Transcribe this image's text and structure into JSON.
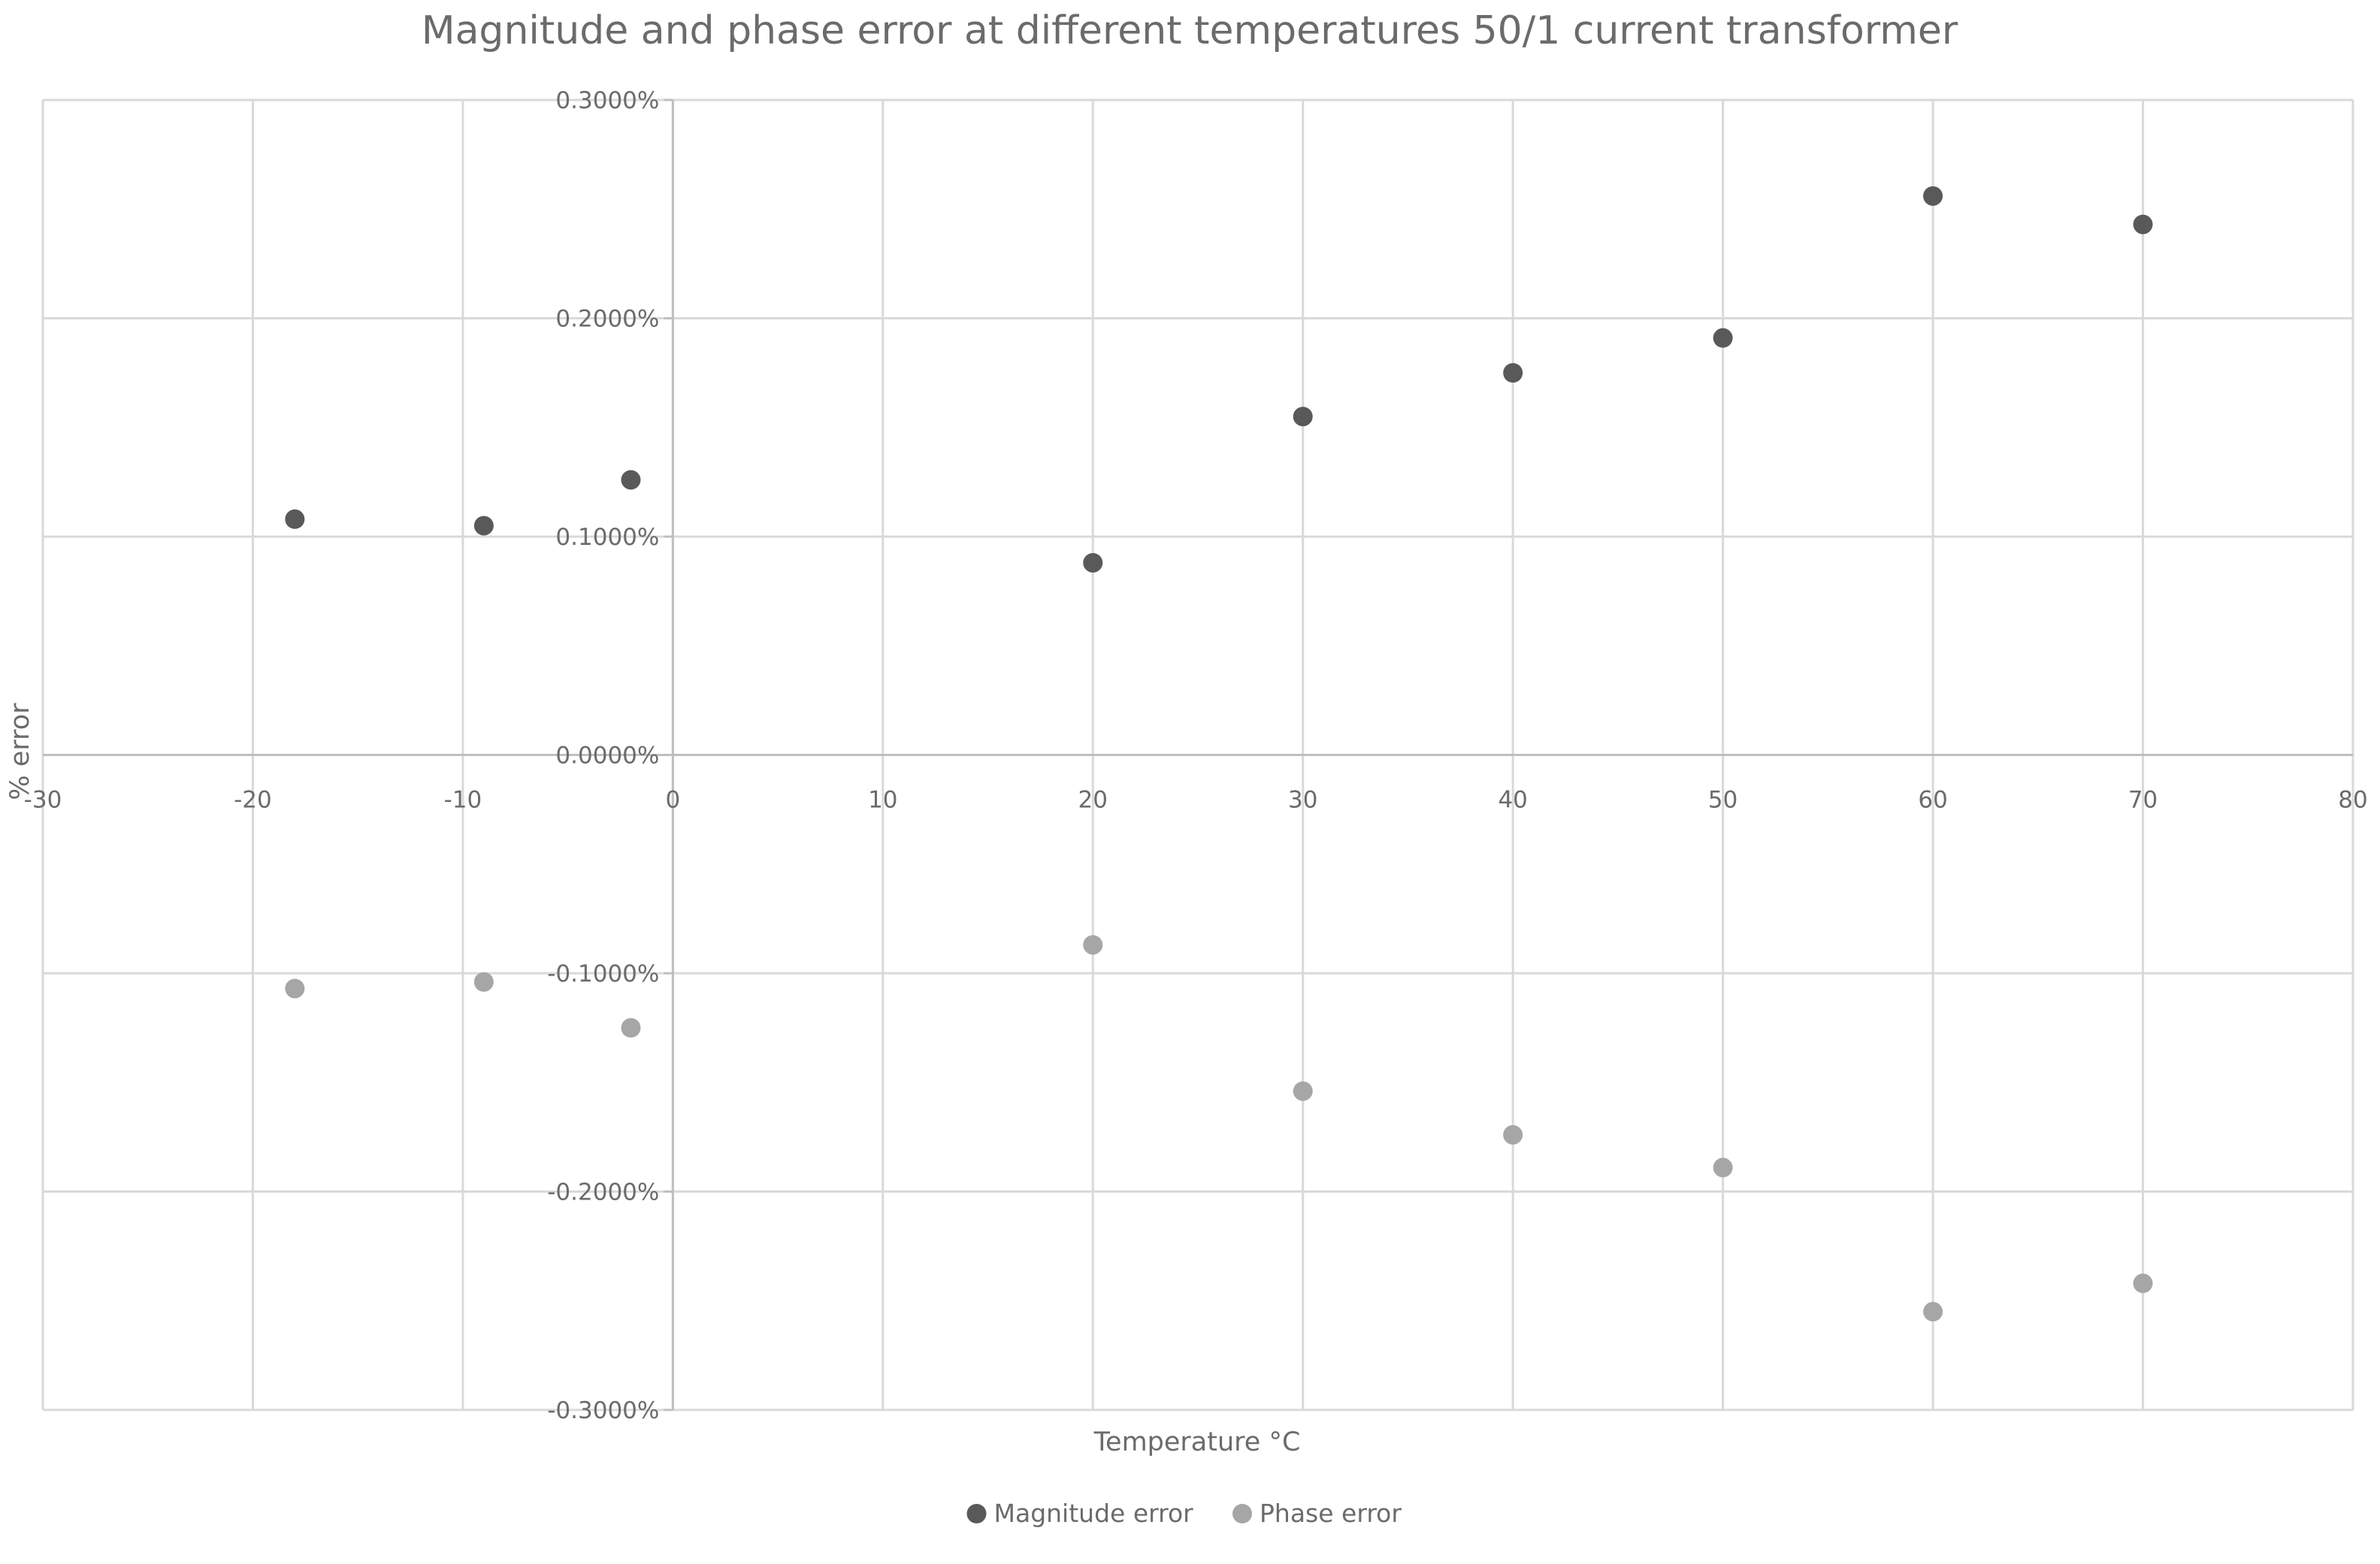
{
  "chart_data": {
    "type": "scatter",
    "title": "Magnitude and phase error at different temperatures 50/1 current transformer",
    "xlabel": "Temperature °C",
    "ylabel": "% error",
    "xlim": [
      -30,
      80
    ],
    "ylim": [
      -0.003,
      0.003
    ],
    "x_ticks": [
      -30,
      -20,
      -10,
      0,
      10,
      20,
      30,
      40,
      50,
      60,
      70,
      80
    ],
    "x_tick_labels": [
      "-30",
      "-20",
      "-10",
      "0",
      "10",
      "20",
      "30",
      "40",
      "50",
      "60",
      "70",
      "80"
    ],
    "y_ticks": [
      0.003,
      0.002,
      0.001,
      0,
      -0.001,
      -0.002,
      -0.003
    ],
    "y_tick_labels": [
      "0.3000%",
      "0.2000%",
      "0.1000%",
      "0.0000%",
      "-0.1000%",
      "-0.2000%",
      "-0.3000%"
    ],
    "grid": true,
    "legend_position": "bottom",
    "series": [
      {
        "name": "Magnitude error",
        "color": "#595959",
        "points": [
          {
            "x": -18,
            "y": 0.00108
          },
          {
            "x": -9,
            "y": 0.00105
          },
          {
            "x": -2,
            "y": 0.00126
          },
          {
            "x": 20,
            "y": 0.00088
          },
          {
            "x": 30,
            "y": 0.00155
          },
          {
            "x": 40,
            "y": 0.00175
          },
          {
            "x": 50,
            "y": 0.00191
          },
          {
            "x": 60,
            "y": 0.00256
          },
          {
            "x": 70,
            "y": 0.00243
          }
        ]
      },
      {
        "name": "Phase error",
        "color": "#a6a6a6",
        "points": [
          {
            "x": -18,
            "y": -0.00107
          },
          {
            "x": -9,
            "y": -0.00104
          },
          {
            "x": -2,
            "y": -0.00125
          },
          {
            "x": 20,
            "y": -0.00087
          },
          {
            "x": 30,
            "y": -0.00154
          },
          {
            "x": 40,
            "y": -0.00174
          },
          {
            "x": 50,
            "y": -0.00189
          },
          {
            "x": 60,
            "y": -0.00255
          },
          {
            "x": 70,
            "y": -0.00242
          }
        ]
      }
    ]
  }
}
